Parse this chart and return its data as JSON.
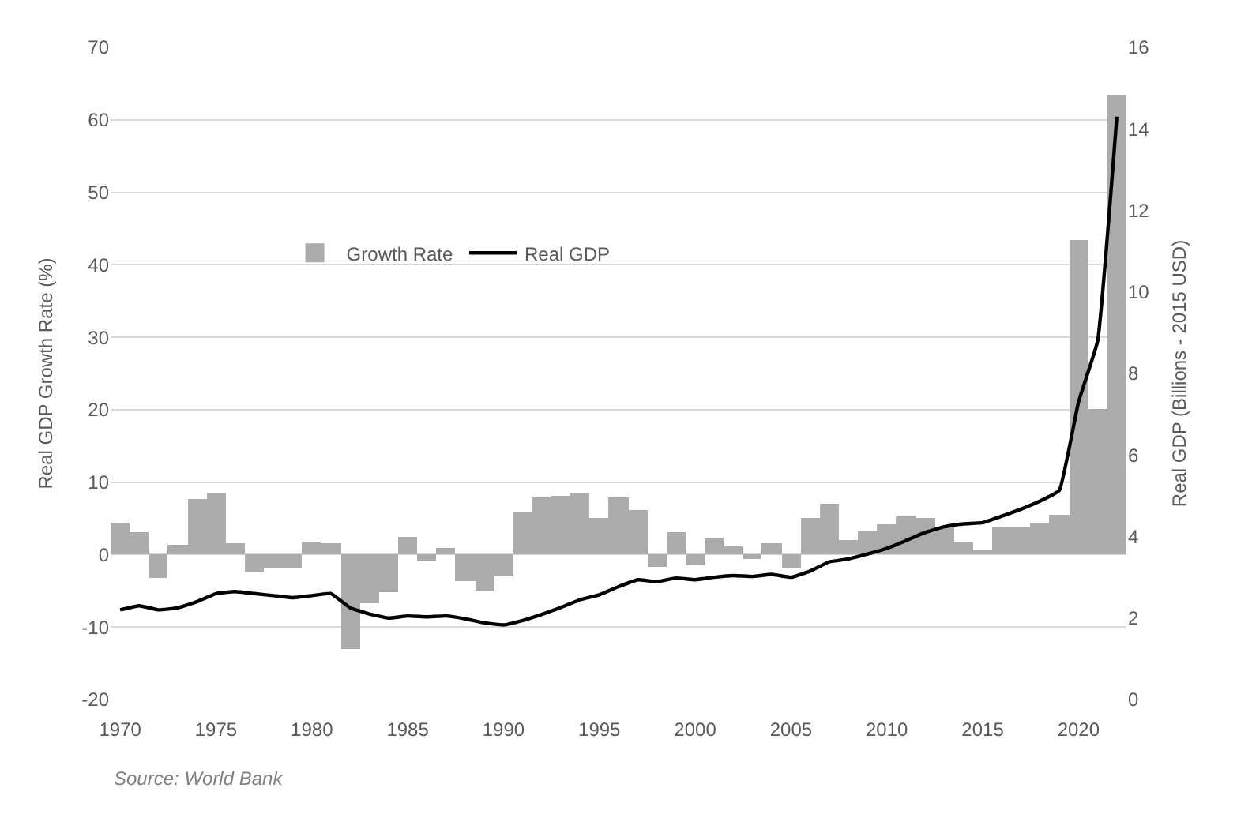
{
  "chart_data": {
    "type": "bar",
    "x": [
      1970,
      1971,
      1972,
      1973,
      1974,
      1975,
      1976,
      1977,
      1978,
      1979,
      1980,
      1981,
      1982,
      1983,
      1984,
      1985,
      1986,
      1987,
      1988,
      1989,
      1990,
      1991,
      1992,
      1993,
      1994,
      1995,
      1996,
      1997,
      1998,
      1999,
      2000,
      2001,
      2002,
      2003,
      2004,
      2005,
      2006,
      2007,
      2008,
      2009,
      2010,
      2011,
      2012,
      2013,
      2014,
      2015,
      2016,
      2017,
      2018,
      2019,
      2020,
      2021,
      2022
    ],
    "series": [
      {
        "name": "Growth Rate",
        "color": "#ababab",
        "values": [
          4.3,
          3.2,
          -3.3,
          1.3,
          7.6,
          8.5,
          1.6,
          -2.4,
          -1.9,
          -1.9,
          1.8,
          1.5,
          -13.1,
          -6.8,
          -5.1,
          2.4,
          -0.8,
          0.9,
          -3.6,
          -4.9,
          -3.0,
          6.0,
          7.8,
          8.2,
          8.5,
          5.0,
          7.9,
          6.2,
          -1.7,
          3.0,
          -1.4,
          2.3,
          1.1,
          -0.7,
          1.6,
          -1.9,
          5.1,
          7.0,
          2.0,
          3.3,
          4.1,
          5.2,
          5.0,
          3.7,
          1.7,
          0.7,
          3.8,
          3.7,
          4.4,
          5.4,
          43.5,
          20.1,
          63.4
        ]
      },
      {
        "name": "Real GDP",
        "type": "line",
        "axis": "y2",
        "color": "#000000",
        "values": [
          2.2,
          2.3,
          2.2,
          2.25,
          2.4,
          2.6,
          2.65,
          2.6,
          2.55,
          2.5,
          2.55,
          2.6,
          2.25,
          2.1,
          2.0,
          2.05,
          2.03,
          2.05,
          1.98,
          1.88,
          1.83,
          1.94,
          2.09,
          2.26,
          2.45,
          2.57,
          2.77,
          2.94,
          2.89,
          2.98,
          2.94,
          3.0,
          3.04,
          3.02,
          3.07,
          3.0,
          3.15,
          3.38,
          3.45,
          3.57,
          3.71,
          3.9,
          4.1,
          4.24,
          4.31,
          4.34,
          4.5,
          4.67,
          4.87,
          5.13,
          7.3,
          8.8,
          14.3
        ]
      }
    ],
    "ylabel": "Real GDP Growth Rate (%)",
    "y2label": "Real GDP (Billions - 2015 USD)",
    "xlim": [
      1969.5,
      2022.5
    ],
    "xticks": [
      1970,
      1975,
      1980,
      1985,
      1990,
      1995,
      2000,
      2005,
      2010,
      2015,
      2020
    ],
    "ylim": [
      -20,
      70
    ],
    "yticks": [
      -20,
      -10,
      0,
      10,
      20,
      30,
      40,
      50,
      60,
      70
    ],
    "y2lim": [
      0,
      16
    ],
    "y2ticks": [
      0,
      2,
      4,
      6,
      8,
      10,
      12,
      14,
      16
    ],
    "grid": "y",
    "legend": "top left",
    "marker": "none",
    "line_style": "solid",
    "annotations": [
      "Source: World Bank"
    ]
  }
}
